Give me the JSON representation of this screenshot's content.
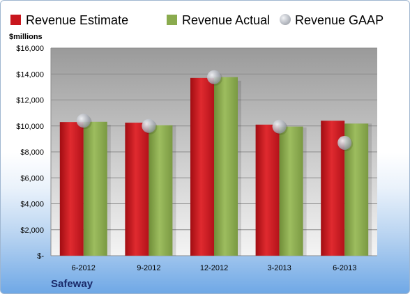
{
  "chart_data": {
    "type": "bar",
    "company": "Safeway",
    "unit_label": "$millions",
    "categories": [
      "6-2012",
      "9-2012",
      "12-2012",
      "3-2013",
      "6-2013"
    ],
    "series": [
      {
        "name": "Revenue Estimate",
        "kind": "bar",
        "color": "#c8161d",
        "values": [
          10300,
          10250,
          13700,
          10100,
          10400
        ]
      },
      {
        "name": "Revenue Actual",
        "kind": "bar",
        "color": "#8aab4e",
        "values": [
          10320,
          10050,
          13760,
          9950,
          10180
        ]
      },
      {
        "name": "Revenue GAAP",
        "kind": "marker",
        "color": "#b8bcc4",
        "values": [
          10400,
          10000,
          13760,
          9950,
          8700
        ]
      }
    ],
    "ylim": [
      0,
      16000
    ],
    "yticks": [
      0,
      2000,
      4000,
      6000,
      8000,
      10000,
      12000,
      14000,
      16000
    ],
    "ytick_labels": [
      "$-",
      "$2,000",
      "$4,000",
      "$6,000",
      "$8,000",
      "$10,000",
      "$12,000",
      "$14,000",
      "$16,000"
    ],
    "legend_position": "top",
    "grid": true
  }
}
